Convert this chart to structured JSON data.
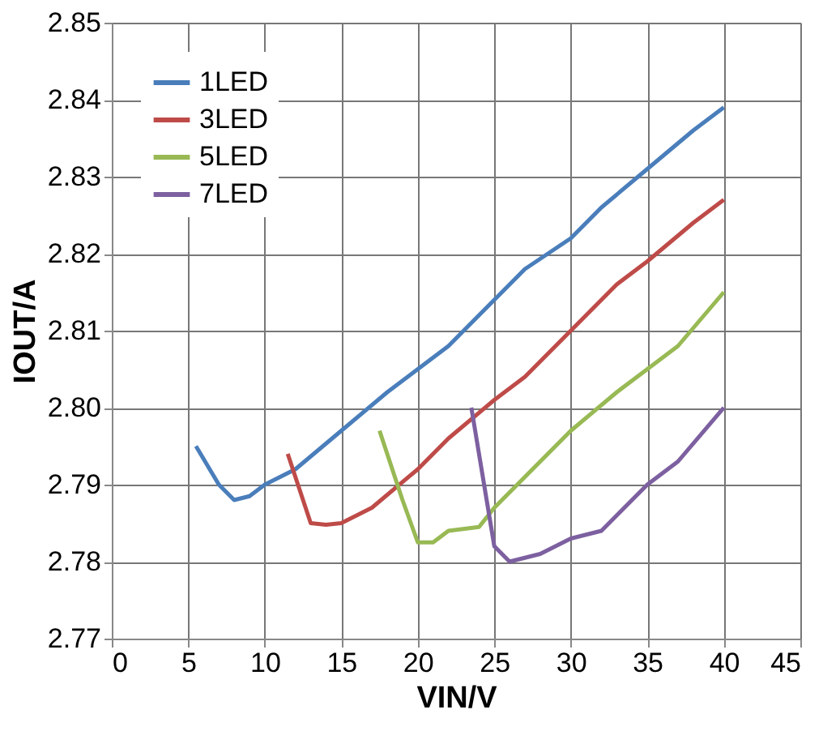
{
  "chart_data": {
    "type": "line",
    "xlabel": "VIN/V",
    "ylabel": "IOUT/A",
    "xlim": [
      0,
      45
    ],
    "xticks": [
      0,
      5,
      10,
      15,
      20,
      25,
      30,
      35,
      40,
      45
    ],
    "ylim": [
      2.77,
      2.85
    ],
    "yticks": [
      {
        "value": 2.77,
        "label": "2.77"
      },
      {
        "value": 2.78,
        "label": "2.78"
      },
      {
        "value": 2.79,
        "label": "2.79"
      },
      {
        "value": 2.8,
        "label": "2.80"
      },
      {
        "value": 2.81,
        "label": "2.81"
      },
      {
        "value": 2.82,
        "label": "2.82"
      },
      {
        "value": 2.83,
        "label": "2.83"
      },
      {
        "value": 2.84,
        "label": "2.84"
      },
      {
        "value": 2.85,
        "label": "2.85"
      }
    ],
    "grid": true,
    "legend": "top left",
    "marker": "none",
    "line_style": "solid",
    "series": [
      {
        "name": "1LED",
        "color": "#4a7ebb",
        "x": [
          5.5,
          7,
          8,
          9,
          10,
          12,
          15,
          18,
          20,
          22,
          25,
          27,
          30,
          32,
          35,
          38,
          40
        ],
        "values": [
          2.795,
          2.79,
          2.788,
          2.7885,
          2.79,
          2.792,
          2.797,
          2.802,
          2.805,
          2.808,
          2.814,
          2.818,
          2.822,
          2.826,
          2.831,
          2.836,
          2.839
        ]
      },
      {
        "name": "3LED",
        "color": "#be4b48",
        "x": [
          11.5,
          13,
          14,
          15,
          17,
          20,
          22,
          25,
          27,
          30,
          33,
          35,
          38,
          40
        ],
        "values": [
          2.794,
          2.785,
          2.7848,
          2.785,
          2.787,
          2.792,
          2.796,
          2.801,
          2.804,
          2.81,
          2.816,
          2.819,
          2.824,
          2.827
        ]
      },
      {
        "name": "5LED",
        "color": "#98b954",
        "x": [
          17.5,
          19,
          20,
          21,
          22,
          24,
          25,
          27,
          30,
          33,
          35,
          37,
          40
        ],
        "values": [
          2.797,
          2.788,
          2.7825,
          2.7825,
          2.784,
          2.7845,
          2.787,
          2.791,
          2.797,
          2.802,
          2.805,
          2.808,
          2.815
        ]
      },
      {
        "name": "7LED",
        "color": "#7d60a0",
        "x": [
          23.5,
          24.5,
          25,
          26,
          27,
          28,
          30,
          32,
          33,
          35,
          37,
          40
        ],
        "values": [
          2.8,
          2.788,
          2.782,
          2.78,
          2.7805,
          2.781,
          2.783,
          2.784,
          2.786,
          2.79,
          2.793,
          2.8
        ]
      }
    ]
  }
}
